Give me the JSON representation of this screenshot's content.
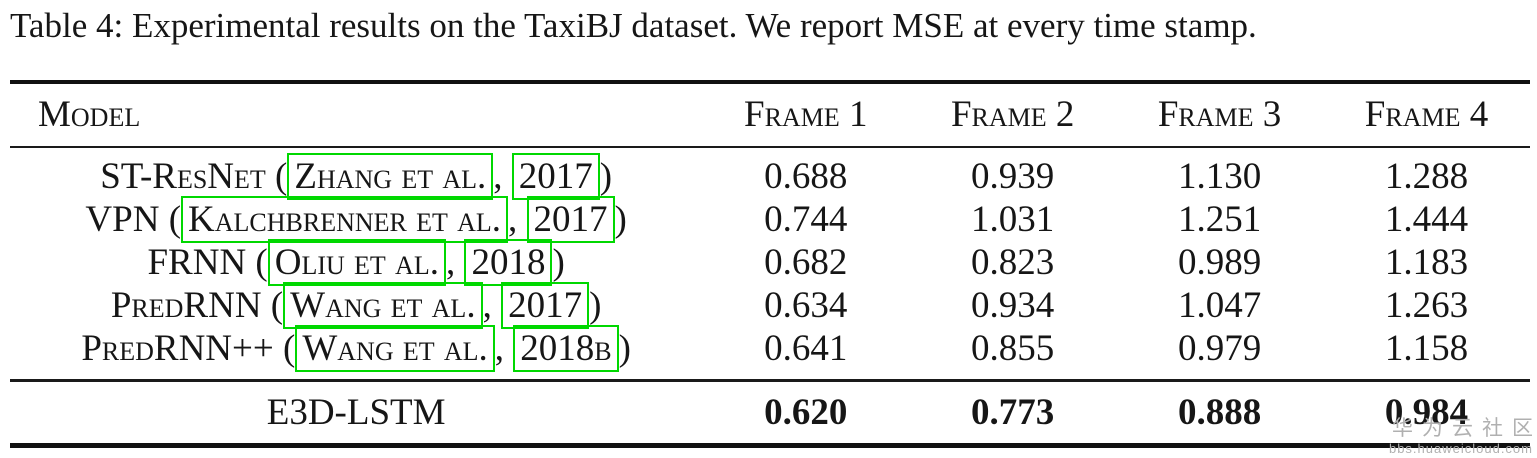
{
  "caption": "Table 4: Experimental results on the TaxiBJ dataset. We report MSE at every time stamp.",
  "table": {
    "headers": {
      "model": "Model",
      "frames": [
        "Frame 1",
        "Frame 2",
        "Frame 3",
        "Frame 4"
      ]
    },
    "rows": [
      {
        "prefix": "ST-ResNet (",
        "author": "Zhang et al.",
        "sep": ", ",
        "year": "2017",
        "suffix": ")",
        "values": [
          "0.688",
          "0.939",
          "1.130",
          "1.288"
        ]
      },
      {
        "prefix": "VPN (",
        "author": "Kalchbrenner et al.",
        "sep": ", ",
        "year": "2017",
        "suffix": ")",
        "values": [
          "0.744",
          "1.031",
          "1.251",
          "1.444"
        ]
      },
      {
        "prefix": "FRNN (",
        "author": "Oliu et al.",
        "sep": ", ",
        "year": "2018",
        "suffix": ")",
        "values": [
          "0.682",
          "0.823",
          "0.989",
          "1.183"
        ]
      },
      {
        "prefix": "PredRNN (",
        "author": "Wang et al.",
        "sep": ", ",
        "year": "2017",
        "suffix": ")",
        "values": [
          "0.634",
          "0.934",
          "1.047",
          "1.263"
        ]
      },
      {
        "prefix": "PredRNN++ (",
        "author": "Wang et al.",
        "sep": ", ",
        "year": "2018b",
        "suffix": ")",
        "values": [
          "0.641",
          "0.855",
          "0.979",
          "1.158"
        ]
      }
    ],
    "highlight": {
      "model": "E3D-LSTM",
      "values": [
        "0.620",
        "0.773",
        "0.888",
        "0.984"
      ]
    }
  },
  "watermark": {
    "line1": "华为云社区",
    "line2": "bbs.huaweicloud.com"
  },
  "colors": {
    "citation_box": "#00d800",
    "text": "#161616",
    "watermark": "#b0b0b0"
  }
}
